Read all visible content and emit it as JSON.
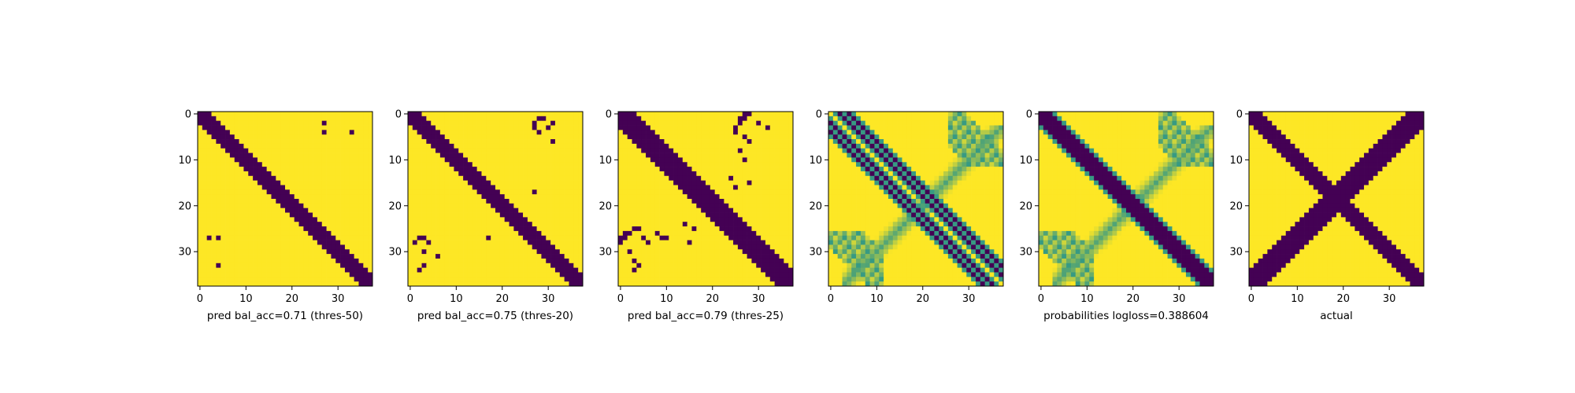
{
  "figure": {
    "background": "#ffffff",
    "colormap": "viridis",
    "colors": {
      "low": "#440154",
      "mid": "#21918c",
      "high": "#fde725"
    }
  },
  "chart_data": [
    {
      "type": "heatmap",
      "kind": "binary",
      "xlabel": "pred bal_acc=0.71 (thres-50)",
      "size": 38,
      "xticks": [
        0,
        10,
        20,
        30
      ],
      "yticks": [
        0,
        10,
        20,
        30
      ],
      "band": {
        "half_width": 2,
        "lag": 1
      },
      "extra_low_cells": [
        [
          27,
          2
        ],
        [
          27,
          4
        ],
        [
          33,
          4
        ],
        [
          2,
          27
        ],
        [
          4,
          27
        ],
        [
          4,
          33
        ]
      ]
    },
    {
      "type": "heatmap",
      "kind": "binary",
      "xlabel": "pred bal_acc=0.75 (thres-20)",
      "size": 38,
      "xticks": [
        0,
        10,
        20,
        30
      ],
      "yticks": [
        0,
        10,
        20,
        30
      ],
      "band": {
        "half_width": 2,
        "lag": 1
      },
      "extra_low_cells": [
        [
          1,
          28
        ],
        [
          2,
          27
        ],
        [
          3,
          27
        ],
        [
          4,
          28
        ],
        [
          3,
          30
        ],
        [
          6,
          31
        ],
        [
          2,
          31
        ],
        [
          1,
          29
        ],
        [
          28,
          1
        ],
        [
          27,
          2
        ],
        [
          27,
          3
        ],
        [
          28,
          4
        ],
        [
          30,
          3
        ],
        [
          31,
          6
        ],
        [
          33,
          3
        ],
        [
          34,
          2
        ],
        [
          27,
          17
        ],
        [
          17,
          27
        ]
      ]
    },
    {
      "type": "heatmap",
      "kind": "binary",
      "xlabel": "pred bal_acc=0.79 (thres-25)",
      "size": 38,
      "xticks": [
        0,
        10,
        20,
        30
      ],
      "yticks": [
        0,
        10,
        20,
        30
      ],
      "band": {
        "half_width": 3,
        "lag": 1
      },
      "extra_low_cells": [
        [
          0,
          27
        ],
        [
          0,
          28
        ],
        [
          1,
          26
        ],
        [
          1,
          27
        ],
        [
          2,
          26
        ],
        [
          3,
          25
        ],
        [
          4,
          25
        ],
        [
          2,
          30
        ],
        [
          3,
          32
        ],
        [
          5,
          27
        ],
        [
          6,
          28
        ],
        [
          8,
          26
        ],
        [
          10,
          27
        ],
        [
          14,
          24
        ],
        [
          15,
          28
        ],
        [
          16,
          25
        ],
        [
          27,
          0
        ],
        [
          28,
          0
        ],
        [
          26,
          1
        ],
        [
          27,
          1
        ],
        [
          26,
          2
        ],
        [
          25,
          3
        ],
        [
          25,
          4
        ],
        [
          30,
          2
        ],
        [
          32,
          3
        ],
        [
          27,
          5
        ],
        [
          28,
          6
        ],
        [
          26,
          8
        ],
        [
          27,
          10
        ],
        [
          24,
          14
        ],
        [
          28,
          15
        ],
        [
          25,
          16
        ],
        [
          33,
          4
        ],
        [
          34,
          3
        ],
        [
          27,
          9
        ]
      ]
    },
    {
      "type": "heatmap",
      "kind": "probabilities",
      "xlabel": "",
      "size": 38,
      "xticks": [
        0,
        10,
        20,
        30
      ],
      "yticks": [
        0,
        10,
        20,
        30
      ],
      "diagonals": [
        2,
        4
      ],
      "anti_diagonal": {
        "index_sum": 40,
        "spread": 3
      }
    },
    {
      "type": "heatmap",
      "kind": "probabilities",
      "xlabel": "probabilities logloss=0.388604",
      "size": 38,
      "xticks": [
        0,
        10,
        20,
        30
      ],
      "yticks": [
        0,
        10,
        20,
        30
      ],
      "band": {
        "half_width": 2,
        "lag": 1
      },
      "anti_diagonal": {
        "index_sum": 40,
        "spread": 3
      }
    },
    {
      "type": "heatmap",
      "kind": "binary",
      "xlabel": "actual",
      "size": 38,
      "xticks": [
        0,
        10,
        20,
        30
      ],
      "yticks": [
        0,
        10,
        20,
        30
      ],
      "band": {
        "half_width": 2,
        "lag": 1
      },
      "anti_diagonal": {
        "index_sum": 37,
        "half_width": 1.5
      },
      "extra_low_cells": [
        [
          12,
          13
        ],
        [
          13,
          12
        ],
        [
          12,
          14
        ],
        [
          14,
          12
        ],
        [
          13,
          14
        ],
        [
          14,
          13
        ]
      ]
    }
  ]
}
